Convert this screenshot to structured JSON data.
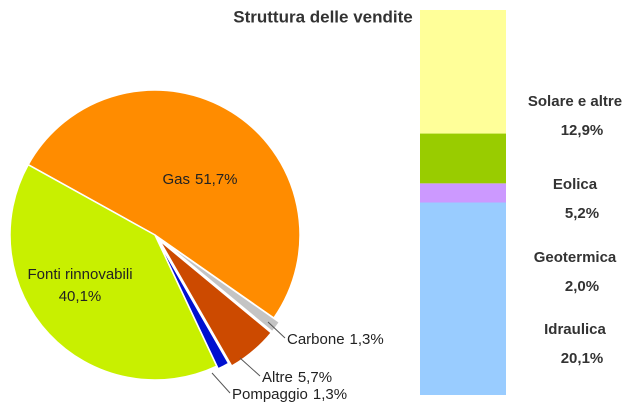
{
  "chart_data": [
    {
      "type": "pie",
      "title": "Struttura delle vendite",
      "categories": [
        "Gas",
        "Carbone",
        "Altre",
        "Pompaggio",
        "Fonti rinnovabili"
      ],
      "values": [
        51.7,
        1.3,
        5.7,
        1.3,
        40.1
      ],
      "value_labels": [
        "51,7%",
        "1,3%",
        "5,7%",
        "1,3%",
        "40,1%"
      ],
      "colors": [
        "#ff8c00",
        "#c4c4c4",
        "#cc4a00",
        "#0010d0",
        "#c8f000"
      ]
    },
    {
      "type": "stacked_bar",
      "categories": [
        "Idraulica",
        "Geotermica",
        "Eolica",
        "Solare e altre"
      ],
      "values": [
        20.1,
        2.0,
        5.2,
        12.9
      ],
      "value_labels": [
        "20,1%",
        "2,0%",
        "5,2%",
        "12,9%"
      ],
      "colors": [
        "#99ccff",
        "#cc99ff",
        "#99cc00",
        "#ffff99"
      ]
    }
  ]
}
